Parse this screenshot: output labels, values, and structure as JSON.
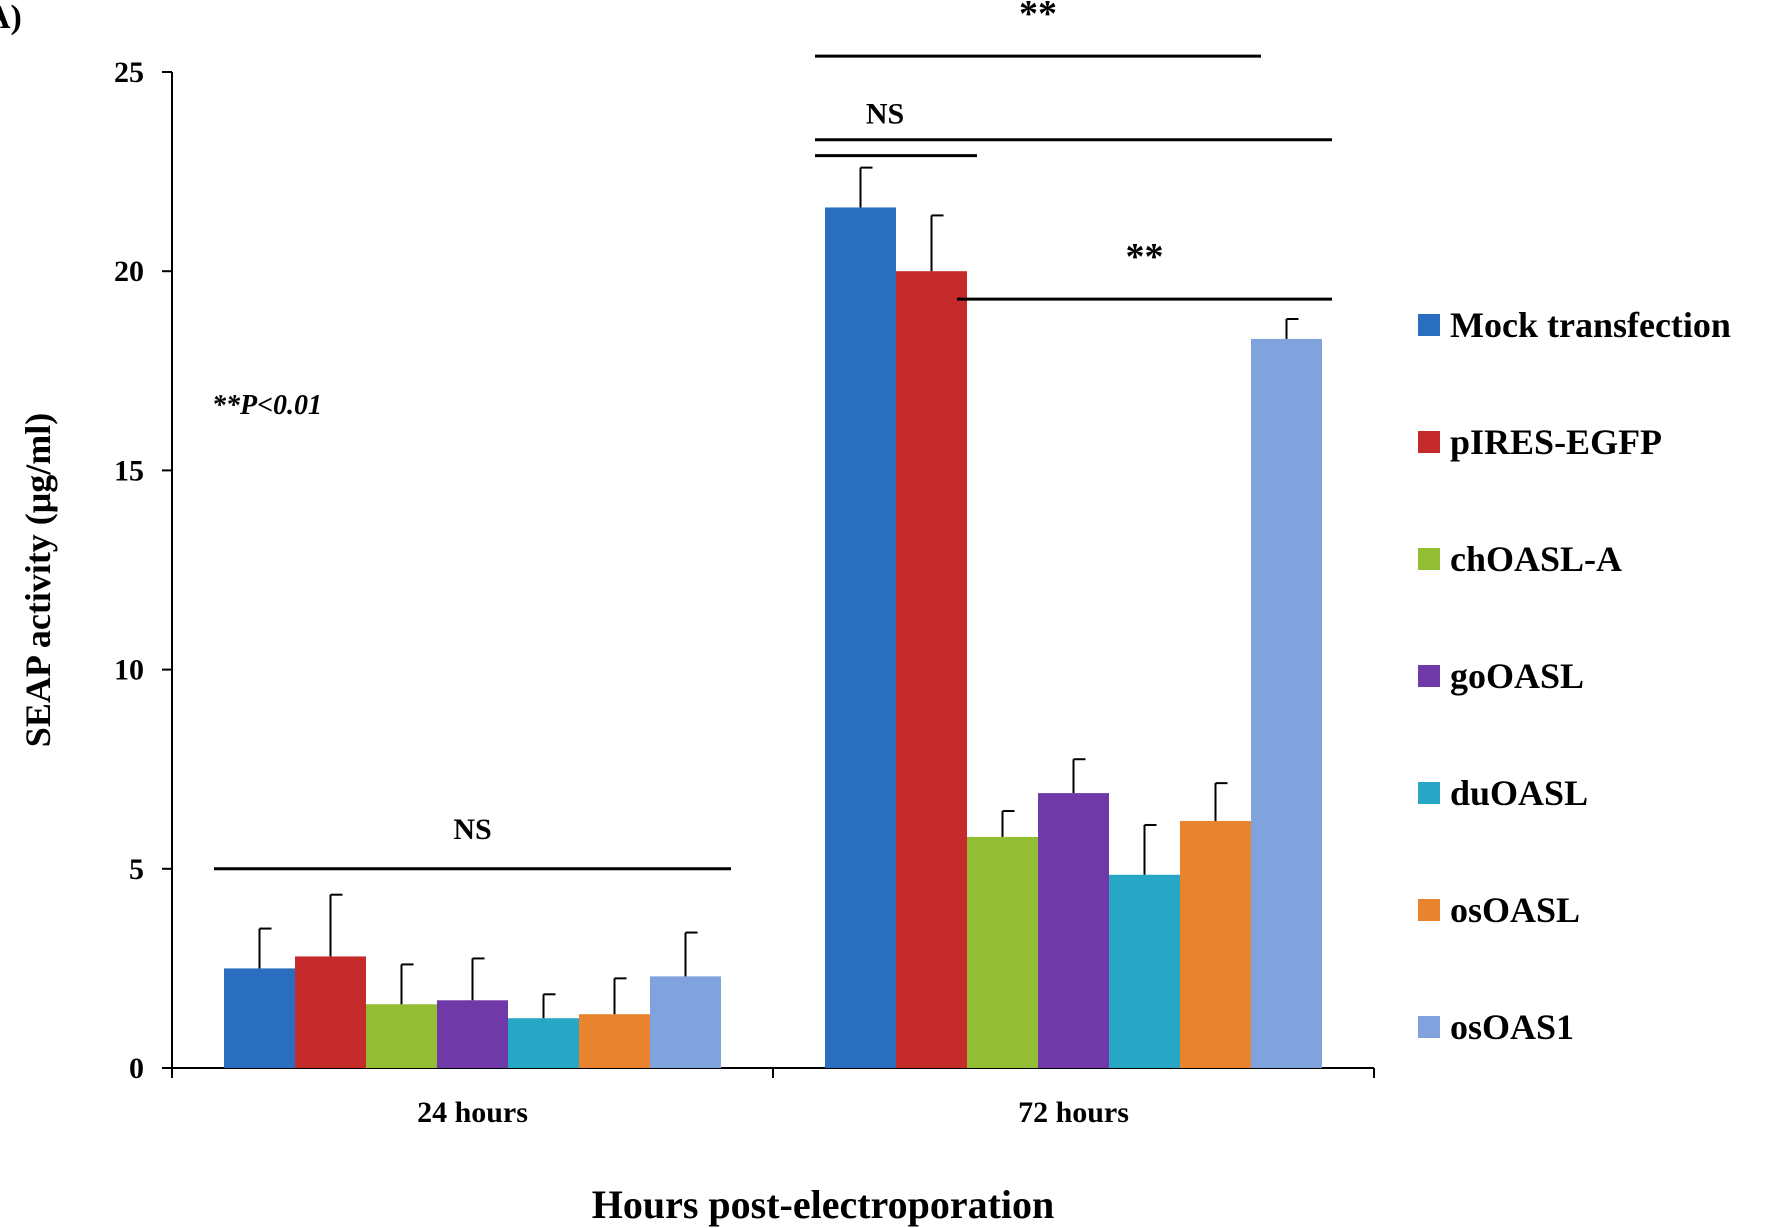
{
  "chart_data": {
    "type": "bar",
    "panel_label": "A)",
    "title": "",
    "xlabel": "Hours post-electroporation",
    "ylabel": "SEAP activity (μg/ml)",
    "ylim": [
      0,
      25
    ],
    "yticks": [
      "0",
      "5",
      "10",
      "15",
      "20",
      "25"
    ],
    "categories": [
      "24 hours",
      "72 hours"
    ],
    "legend_position": "right",
    "grid": false,
    "series": [
      {
        "name": "Mock transfection",
        "color": "#2a6ebf",
        "values": [
          2.5,
          21.6
        ],
        "errors": [
          1.0,
          1.0
        ]
      },
      {
        "name": "pIRES-EGFP",
        "color": "#c52b2b",
        "values": [
          2.8,
          20.0
        ],
        "errors": [
          1.55,
          1.4
        ]
      },
      {
        "name": "chOASL-A",
        "color": "#93be33",
        "values": [
          1.6,
          5.8
        ],
        "errors": [
          1.0,
          0.65
        ]
      },
      {
        "name": "goOASL",
        "color": "#6f3aa8",
        "values": [
          1.7,
          6.9
        ],
        "errors": [
          1.05,
          0.85
        ]
      },
      {
        "name": "duOASL",
        "color": "#27a6c6",
        "values": [
          1.25,
          4.85
        ],
        "errors": [
          0.6,
          1.25
        ]
      },
      {
        "name": "osOASL",
        "color": "#ea832e",
        "values": [
          1.35,
          6.2
        ],
        "errors": [
          0.9,
          0.95
        ]
      },
      {
        "name": "osOAS1",
        "color": "#80a3de",
        "values": [
          2.3,
          18.3
        ],
        "errors": [
          1.1,
          0.5
        ]
      }
    ],
    "annotations": {
      "pvalue_note": "**P<0.01",
      "sig_24h": "NS",
      "sig_72h_top": "**",
      "sig_72h_ns": "NS",
      "sig_72h_right": "**"
    },
    "brackets": [
      {
        "group": 0,
        "from_series": 0,
        "to_series": 6,
        "y": 5.0,
        "label_key": "sig_24h"
      },
      {
        "group": 1,
        "from_series": 0,
        "to_series": 5,
        "y": 25.4,
        "label_key": "sig_72h_top"
      },
      {
        "group": 1,
        "from_series": 0,
        "to_series": 6,
        "y": 23.3,
        "label_key": "sig_72h_ns"
      },
      {
        "group": 1,
        "from_series": 0,
        "to_series": 1,
        "y": 22.9,
        "label_key": null
      },
      {
        "group": 1,
        "from_series": 2,
        "to_series": 6,
        "y": 19.3,
        "label_key": "sig_72h_right"
      }
    ]
  }
}
